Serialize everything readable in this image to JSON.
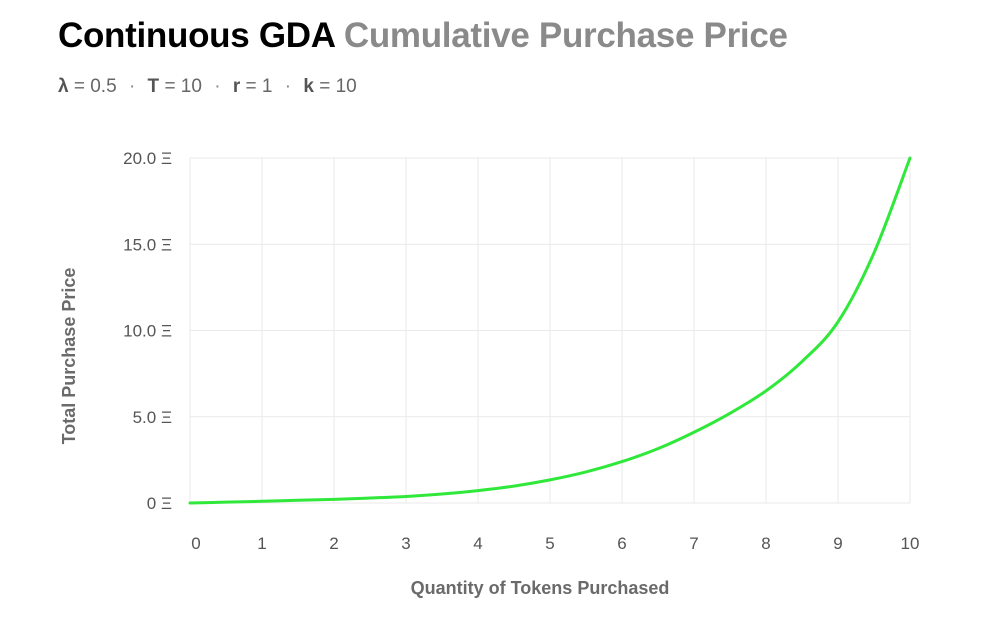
{
  "header": {
    "title_main": "Continuous GDA",
    "title_sub": "Cumulative Purchase Price",
    "params": [
      {
        "sym": "λ",
        "value": "= 0.5"
      },
      {
        "sym": "T",
        "value": "= 10"
      },
      {
        "sym": "r",
        "value": "= 1"
      },
      {
        "sym": "k",
        "value": "= 10"
      }
    ],
    "separator": "·"
  },
  "colors": {
    "line": "#2fe83a",
    "grid": "#e9e9e9",
    "text": "#555555"
  },
  "chart_data": {
    "type": "line",
    "xlabel": "Quantity of Tokens Purchased",
    "ylabel": "Total Purchase Price",
    "xlim": [
      0,
      10
    ],
    "ylim": [
      0,
      20
    ],
    "x_ticks": [
      "0",
      "1",
      "2",
      "3",
      "4",
      "5",
      "6",
      "7",
      "8",
      "9",
      "10"
    ],
    "y_ticks": [
      {
        "value": 0,
        "label": "0 Ξ"
      },
      {
        "value": 5,
        "label": "5.0 Ξ"
      },
      {
        "value": 10,
        "label": "10.0 Ξ"
      },
      {
        "value": 15,
        "label": "15.0 Ξ"
      },
      {
        "value": 20,
        "label": "20.0 Ξ"
      }
    ],
    "grid": true,
    "series": [
      {
        "x": [
          0,
          0.5,
          1,
          1.5,
          2,
          2.5,
          3,
          3.5,
          4,
          4.5,
          5,
          5.5,
          6,
          6.5,
          7,
          7.5,
          8,
          8.5,
          9,
          9.5,
          10
        ],
        "values": [
          0,
          0.05,
          0.1,
          0.16,
          0.21,
          0.29,
          0.38,
          0.52,
          0.72,
          0.98,
          1.34,
          1.8,
          2.4,
          3.15,
          4.1,
          5.2,
          6.5,
          8.2,
          10.5,
          14.5,
          20
        ]
      }
    ]
  }
}
